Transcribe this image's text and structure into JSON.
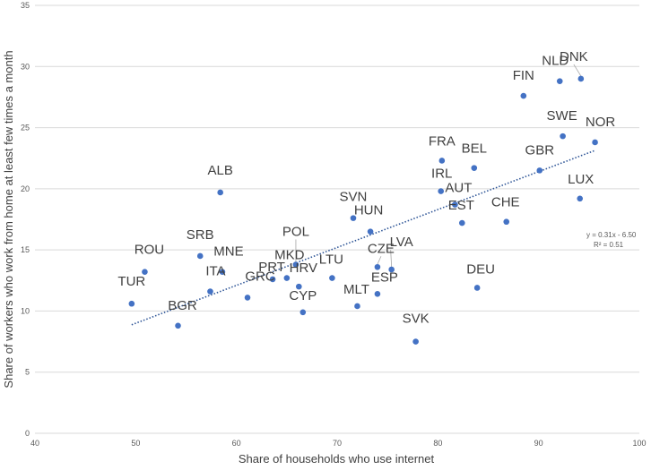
{
  "chart_data": {
    "type": "scatter",
    "title": "",
    "xlabel": "Share of households who use internet",
    "ylabel": "Share of workers who work from home at least few times a month",
    "xlim": [
      40,
      100
    ],
    "ylim": [
      0,
      35
    ],
    "x_ticks": [
      40,
      50,
      60,
      70,
      80,
      90,
      100
    ],
    "y_ticks": [
      0,
      5,
      10,
      15,
      20,
      25,
      30,
      35
    ],
    "grid": "horizontal",
    "points": [
      {
        "label": "TUR",
        "x": 49.6,
        "y": 10.6
      },
      {
        "label": "BGR",
        "x": 54.2,
        "y": 8.8
      },
      {
        "label": "ROU",
        "x": 50.9,
        "y": 13.2
      },
      {
        "label": "SRB",
        "x": 56.4,
        "y": 14.5
      },
      {
        "label": "MNE",
        "x": 58.6,
        "y": 13.2
      },
      {
        "label": "ITA",
        "x": 57.4,
        "y": 11.6
      },
      {
        "label": "ALB",
        "x": 58.4,
        "y": 19.7
      },
      {
        "label": "GRC",
        "x": 61.1,
        "y": 11.1
      },
      {
        "label": "PRT",
        "x": 63.6,
        "y": 12.6
      },
      {
        "label": "MKD",
        "x": 65.0,
        "y": 12.7
      },
      {
        "label": "POL",
        "x": 65.9,
        "y": 13.8
      },
      {
        "label": "HRV",
        "x": 66.2,
        "y": 12.0
      },
      {
        "label": "CYP",
        "x": 66.6,
        "y": 9.9
      },
      {
        "label": "LTU",
        "x": 69.5,
        "y": 12.7
      },
      {
        "label": "SVN",
        "x": 71.6,
        "y": 17.6
      },
      {
        "label": "HUN",
        "x": 73.3,
        "y": 16.5
      },
      {
        "label": "MLT",
        "x": 72.0,
        "y": 10.4
      },
      {
        "label": "CZE",
        "x": 74.0,
        "y": 13.6
      },
      {
        "label": "ESP",
        "x": 74.0,
        "y": 11.4
      },
      {
        "label": "LVA",
        "x": 75.4,
        "y": 13.4
      },
      {
        "label": "SVK",
        "x": 77.8,
        "y": 7.5
      },
      {
        "label": "FRA",
        "x": 80.4,
        "y": 22.3
      },
      {
        "label": "IRL",
        "x": 80.3,
        "y": 19.8
      },
      {
        "label": "AUT",
        "x": 81.7,
        "y": 18.7
      },
      {
        "label": "EST",
        "x": 82.4,
        "y": 17.2
      },
      {
        "label": "BEL",
        "x": 83.6,
        "y": 21.7
      },
      {
        "label": "DEU",
        "x": 83.9,
        "y": 11.9
      },
      {
        "label": "CHE",
        "x": 86.8,
        "y": 17.3
      },
      {
        "label": "FIN",
        "x": 88.5,
        "y": 27.6
      },
      {
        "label": "GBR",
        "x": 90.1,
        "y": 21.5
      },
      {
        "label": "NLD",
        "x": 92.1,
        "y": 28.8
      },
      {
        "label": "SWE",
        "x": 92.4,
        "y": 24.3
      },
      {
        "label": "DNK",
        "x": 94.2,
        "y": 29.0
      },
      {
        "label": "LUX",
        "x": 94.1,
        "y": 19.2
      },
      {
        "label": "NOR",
        "x": 95.6,
        "y": 23.8
      }
    ],
    "trendline": {
      "type": "linear",
      "from_x": 49.6,
      "to_x": 95.6,
      "equation": "y = 0.31x - 6.50",
      "r_squared": "R² = 0.51"
    },
    "colors": {
      "point": "#4472c4",
      "trend": "#2e5597",
      "grid": "#d9d9d9"
    }
  }
}
